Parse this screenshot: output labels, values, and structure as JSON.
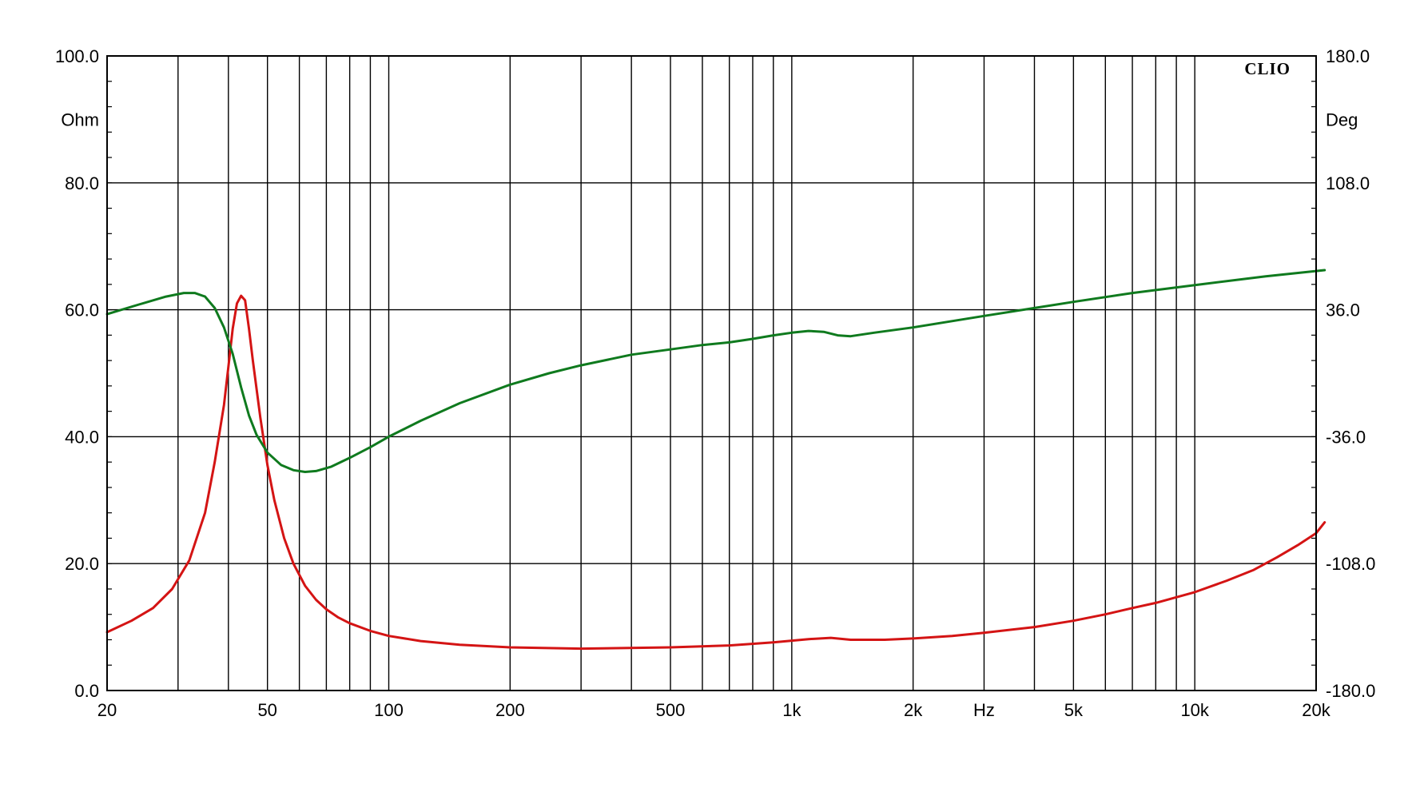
{
  "chart_data": {
    "type": "line",
    "brand": "CLIO",
    "x_scale": "log",
    "xlim": [
      20,
      20000
    ],
    "x_unit_label": "Hz",
    "x_ticks": [
      {
        "value": 20,
        "label": "20"
      },
      {
        "value": 50,
        "label": "50"
      },
      {
        "value": 100,
        "label": "100"
      },
      {
        "value": 200,
        "label": "200"
      },
      {
        "value": 500,
        "label": "500"
      },
      {
        "value": 1000,
        "label": "1k"
      },
      {
        "value": 2000,
        "label": "2k"
      },
      {
        "value": 5000,
        "label": "5k"
      },
      {
        "value": 10000,
        "label": "10k"
      },
      {
        "value": 20000,
        "label": "20k"
      }
    ],
    "y_left": {
      "unit": "Ohm",
      "lim": [
        0,
        100
      ],
      "ticks": [
        "0.0",
        "20.0",
        "40.0",
        "60.0",
        "80.0",
        "100.0"
      ]
    },
    "y_right": {
      "unit": "Deg",
      "lim": [
        -180,
        180
      ],
      "ticks": [
        "-180.0",
        "-108.0",
        "-36.0",
        "36.0",
        "108.0",
        "180.0"
      ]
    },
    "grid": true,
    "colors": {
      "impedance": "#d41414",
      "phase": "#0f7a1e",
      "grid": "#000000"
    },
    "series": [
      {
        "key": "impedance",
        "axis": "left",
        "color": "#d41414",
        "points": [
          [
            20,
            9.2
          ],
          [
            23,
            11.0
          ],
          [
            26,
            13.0
          ],
          [
            29,
            16.0
          ],
          [
            32,
            20.5
          ],
          [
            35,
            28
          ],
          [
            37,
            36
          ],
          [
            39,
            45
          ],
          [
            40,
            51
          ],
          [
            41,
            57
          ],
          [
            42,
            61
          ],
          [
            43,
            62.2
          ],
          [
            44,
            61.5
          ],
          [
            45,
            57
          ],
          [
            46,
            52
          ],
          [
            48,
            43
          ],
          [
            50,
            35.5
          ],
          [
            52,
            30
          ],
          [
            55,
            24
          ],
          [
            58,
            20
          ],
          [
            62,
            16.5
          ],
          [
            66,
            14.3
          ],
          [
            70,
            12.8
          ],
          [
            75,
            11.5
          ],
          [
            80,
            10.6
          ],
          [
            90,
            9.4
          ],
          [
            100,
            8.6
          ],
          [
            120,
            7.8
          ],
          [
            150,
            7.2
          ],
          [
            200,
            6.8
          ],
          [
            300,
            6.6
          ],
          [
            500,
            6.8
          ],
          [
            700,
            7.1
          ],
          [
            900,
            7.6
          ],
          [
            1100,
            8.1
          ],
          [
            1250,
            8.3
          ],
          [
            1400,
            8.0
          ],
          [
            1700,
            8.0
          ],
          [
            2000,
            8.2
          ],
          [
            2500,
            8.6
          ],
          [
            3000,
            9.1
          ],
          [
            4000,
            10.0
          ],
          [
            5000,
            11.0
          ],
          [
            6000,
            12.0
          ],
          [
            7000,
            13.0
          ],
          [
            8000,
            13.8
          ],
          [
            10000,
            15.5
          ],
          [
            12000,
            17.3
          ],
          [
            14000,
            19.0
          ],
          [
            16000,
            21.0
          ],
          [
            18000,
            22.9
          ],
          [
            20000,
            24.8
          ],
          [
            21000,
            26.5
          ]
        ]
      },
      {
        "key": "phase",
        "axis": "right",
        "color": "#0f7a1e",
        "points": [
          [
            20,
            33.5
          ],
          [
            24,
            39
          ],
          [
            28,
            43.5
          ],
          [
            31,
            45.5
          ],
          [
            33,
            45.5
          ],
          [
            35,
            43.5
          ],
          [
            37,
            37
          ],
          [
            39,
            26
          ],
          [
            41,
            11
          ],
          [
            43,
            -8
          ],
          [
            45,
            -24
          ],
          [
            47,
            -35
          ],
          [
            50,
            -45
          ],
          [
            54,
            -52
          ],
          [
            58,
            -55
          ],
          [
            62,
            -56
          ],
          [
            66,
            -55.5
          ],
          [
            72,
            -53
          ],
          [
            80,
            -48
          ],
          [
            90,
            -42
          ],
          [
            100,
            -36
          ],
          [
            120,
            -27
          ],
          [
            150,
            -17
          ],
          [
            200,
            -6.5
          ],
          [
            250,
            0
          ],
          [
            300,
            4.5
          ],
          [
            400,
            10.5
          ],
          [
            500,
            13.5
          ],
          [
            600,
            16
          ],
          [
            700,
            17.5
          ],
          [
            800,
            19.5
          ],
          [
            900,
            21.5
          ],
          [
            1000,
            23
          ],
          [
            1100,
            24
          ],
          [
            1200,
            23.5
          ],
          [
            1300,
            21.5
          ],
          [
            1400,
            21
          ],
          [
            1600,
            23
          ],
          [
            2000,
            26
          ],
          [
            3000,
            32.5
          ],
          [
            4000,
            37
          ],
          [
            5000,
            40.5
          ],
          [
            7000,
            45.5
          ],
          [
            10000,
            50
          ],
          [
            15000,
            55
          ],
          [
            20000,
            58
          ],
          [
            21000,
            58.5
          ]
        ]
      }
    ]
  }
}
